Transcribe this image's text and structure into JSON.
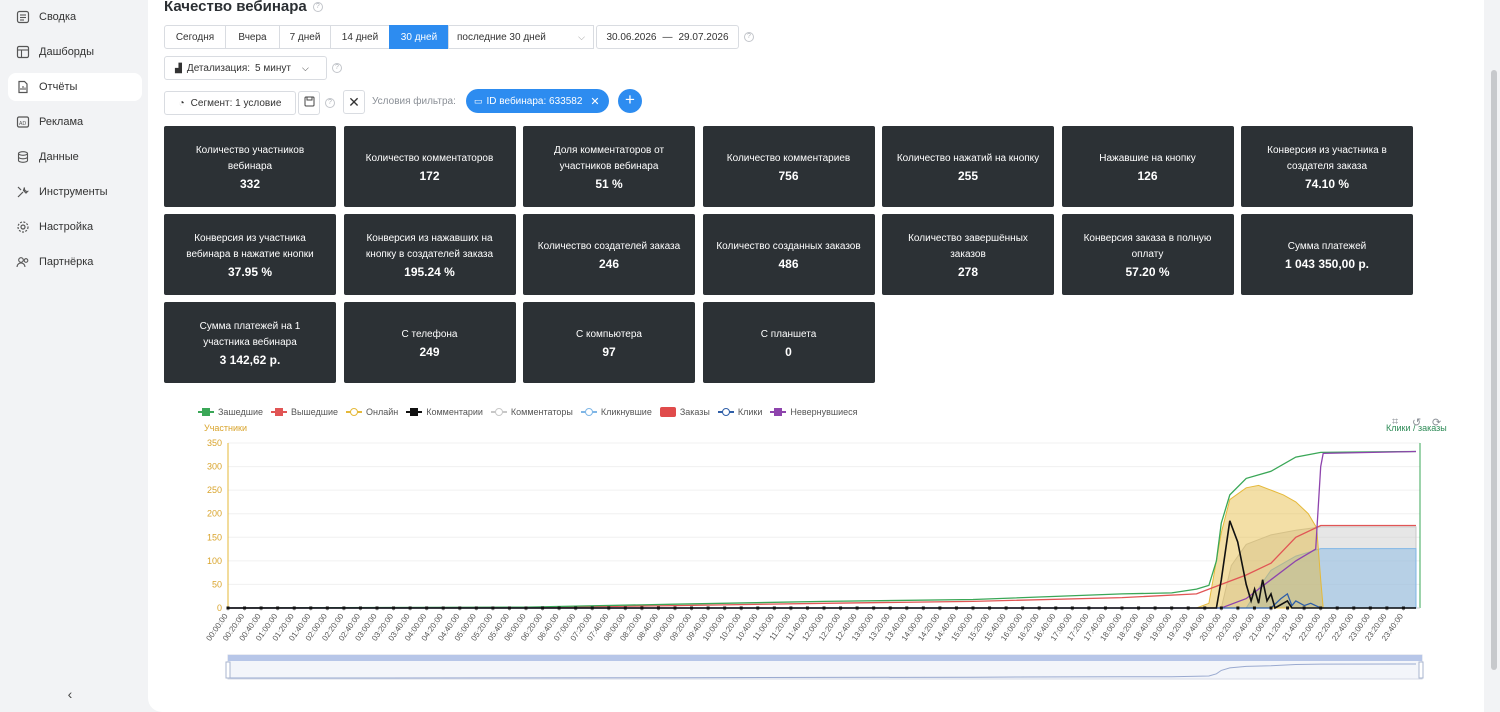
{
  "sidebar": {
    "items": [
      {
        "label": "Сводка",
        "icon": "summary-icon"
      },
      {
        "label": "Дашборды",
        "icon": "dashboard-icon"
      },
      {
        "label": "Отчёты",
        "icon": "reports-icon"
      },
      {
        "label": "Реклама",
        "icon": "ads-icon"
      },
      {
        "label": "Данные",
        "icon": "database-icon"
      },
      {
        "label": "Инструменты",
        "icon": "tools-icon"
      },
      {
        "label": "Настройка",
        "icon": "settings-icon"
      },
      {
        "label": "Партнёрка",
        "icon": "partners-icon"
      }
    ],
    "active_index": 2,
    "collapse_label": "‹"
  },
  "page": {
    "title": "Качество вебинара"
  },
  "date_buttons": [
    "Сегодня",
    "Вчера",
    "7 дней",
    "14 дней",
    "30 дней"
  ],
  "date_active": "30 дней",
  "period_select": "последние 30 дней",
  "date_range": {
    "from": "30.06.2026",
    "sep": "—",
    "to": "29.07.2026"
  },
  "detail": {
    "label": "Детализация:",
    "value": "5 минут"
  },
  "segment": {
    "label": "Сегмент: 1 условие"
  },
  "filter": {
    "label": "Условия фильтра:",
    "chip": "ID вебинара: 633582"
  },
  "cards": [
    {
      "label": "Количество участников вебинара",
      "value": "332"
    },
    {
      "label": "Количество комментаторов",
      "value": "172"
    },
    {
      "label": "Доля комментаторов от участников вебинара",
      "value": "51 %"
    },
    {
      "label": "Количество комментариев",
      "value": "756"
    },
    {
      "label": "Количество нажатий на кнопку",
      "value": "255"
    },
    {
      "label": "Нажавшие на кнопку",
      "value": "126"
    },
    {
      "label": "Конверсия из участника в создателя заказа",
      "value": "74.10 %"
    },
    {
      "label": "Конверсия из участника вебинара в нажатие кнопки",
      "value": "37.95 %"
    },
    {
      "label": "Конверсия из нажавших на кнопку в создателей заказа",
      "value": "195.24 %"
    },
    {
      "label": "Количество создателей заказа",
      "value": "246"
    },
    {
      "label": "Количество созданных заказов",
      "value": "486"
    },
    {
      "label": "Количество завершённых заказов",
      "value": "278"
    },
    {
      "label": "Конверсия заказа в полную оплату",
      "value": "57.20 %"
    },
    {
      "label": "Сумма платежей",
      "value": "1 043 350,00 р."
    },
    {
      "label": "Сумма платежей на 1 участника вебинара",
      "value": "3 142,62 р."
    },
    {
      "label": "С телефона",
      "value": "249"
    },
    {
      "label": "С компьютера",
      "value": "97"
    },
    {
      "label": "С планшета",
      "value": "0"
    }
  ],
  "chart": {
    "legend": [
      {
        "name": "Зашедшие",
        "color": "#3aa757",
        "marker": "square"
      },
      {
        "name": "Вышедшие",
        "color": "#e15555",
        "marker": "square"
      },
      {
        "name": "Онлайн",
        "color": "#e5b93a",
        "marker": "circle"
      },
      {
        "name": "Комментарии",
        "color": "#111111",
        "marker": "square"
      },
      {
        "name": "Комментаторы",
        "color": "#c8c8c8",
        "marker": "circle"
      },
      {
        "name": "Кликнувшие",
        "color": "#7fb6e6",
        "marker": "circle"
      },
      {
        "name": "Заказы",
        "color": "#e04b4b",
        "marker": "box"
      },
      {
        "name": "Клики",
        "color": "#2f5fa8",
        "marker": "circle"
      },
      {
        "name": "Невернувшиеся",
        "color": "#8e44ad",
        "marker": "square"
      }
    ],
    "y_title": "Участники",
    "y2_title": "Клики / заказы"
  },
  "chart_data": {
    "type": "area",
    "ylabel": "Участники",
    "y2label": "Клики / заказы",
    "ylim": [
      0,
      350
    ],
    "yticks": [
      0,
      50,
      100,
      150,
      200,
      250,
      300,
      350
    ],
    "x_ticks": [
      "00:00:00",
      "00:20:00",
      "00:40:00",
      "01:00:00",
      "01:20:00",
      "01:40:00",
      "02:00:00",
      "02:20:00",
      "02:40:00",
      "03:00:00",
      "03:20:00",
      "03:40:00",
      "04:00:00",
      "04:20:00",
      "04:40:00",
      "05:00:00",
      "05:20:00",
      "05:40:00",
      "06:00:00",
      "06:20:00",
      "06:40:00",
      "07:00:00",
      "07:20:00",
      "07:40:00",
      "08:00:00",
      "08:20:00",
      "08:40:00",
      "09:00:00",
      "09:20:00",
      "09:40:00",
      "10:00:00",
      "10:20:00",
      "10:40:00",
      "11:00:00",
      "11:20:00",
      "11:40:00",
      "12:00:00",
      "12:20:00",
      "12:40:00",
      "13:00:00",
      "13:20:00",
      "13:40:00",
      "14:00:00",
      "14:20:00",
      "14:40:00",
      "15:00:00",
      "15:20:00",
      "15:40:00",
      "16:00:00",
      "16:20:00",
      "16:40:00",
      "17:00:00",
      "17:20:00",
      "17:40:00",
      "18:00:00",
      "18:20:00",
      "18:40:00",
      "19:00:00",
      "19:20:00",
      "19:40:00",
      "20:00:00",
      "20:20:00",
      "20:40:00",
      "21:00:00",
      "21:20:00",
      "21:40:00",
      "22:00:00",
      "22:20:00",
      "22:40:00",
      "23:00:00",
      "23:20:00",
      "23:40:00"
    ],
    "x_hours": [
      0,
      24
    ],
    "series": [
      {
        "name": "Зашедшие",
        "color": "#3aa757",
        "kind": "line",
        "points": [
          [
            0,
            0
          ],
          [
            6,
            2
          ],
          [
            9,
            8
          ],
          [
            12,
            14
          ],
          [
            15,
            18
          ],
          [
            18,
            30
          ],
          [
            19,
            32
          ],
          [
            19.5,
            40
          ],
          [
            19.75,
            48
          ],
          [
            19.9,
            100
          ],
          [
            20,
            180
          ],
          [
            20.17,
            240
          ],
          [
            20.5,
            275
          ],
          [
            21,
            290
          ],
          [
            21.5,
            320
          ],
          [
            22,
            330
          ],
          [
            23.92,
            332
          ]
        ]
      },
      {
        "name": "Вышедшие",
        "color": "#e15555",
        "kind": "line",
        "points": [
          [
            0,
            0
          ],
          [
            6,
            1
          ],
          [
            9,
            5
          ],
          [
            12,
            10
          ],
          [
            15,
            14
          ],
          [
            18,
            22
          ],
          [
            19.5,
            30
          ],
          [
            20,
            50
          ],
          [
            20.5,
            70
          ],
          [
            21,
            95
          ],
          [
            21.5,
            150
          ],
          [
            22,
            175
          ],
          [
            23.92,
            175
          ]
        ]
      },
      {
        "name": "Онлайн",
        "color": "#e5b93a",
        "kind": "area",
        "points": [
          [
            19.5,
            0
          ],
          [
            19.75,
            10
          ],
          [
            20,
            160
          ],
          [
            20.17,
            230
          ],
          [
            20.5,
            255
          ],
          [
            20.75,
            260
          ],
          [
            21,
            250
          ],
          [
            21.25,
            240
          ],
          [
            21.5,
            225
          ],
          [
            21.75,
            200
          ],
          [
            21.92,
            170
          ],
          [
            22,
            60
          ],
          [
            22.05,
            0
          ]
        ]
      },
      {
        "name": "Комментаторы",
        "color": "#c8c8c8",
        "kind": "area",
        "points": [
          [
            20,
            0
          ],
          [
            20.2,
            90
          ],
          [
            20.5,
            135
          ],
          [
            21,
            155
          ],
          [
            21.5,
            165
          ],
          [
            22,
            172
          ],
          [
            23.92,
            172
          ]
        ]
      },
      {
        "name": "Кликнувшие",
        "color": "#7fb6e6",
        "kind": "area",
        "points": [
          [
            20.5,
            0
          ],
          [
            20.8,
            50
          ],
          [
            21,
            80
          ],
          [
            21.5,
            110
          ],
          [
            22,
            126
          ],
          [
            23.92,
            126
          ]
        ]
      },
      {
        "name": "Невернувшиеся",
        "color": "#8e44ad",
        "kind": "line",
        "points": [
          [
            0,
            0
          ],
          [
            20,
            0
          ],
          [
            20.5,
            20
          ],
          [
            21,
            60
          ],
          [
            21.5,
            100
          ],
          [
            21.9,
            125
          ],
          [
            22,
            300
          ],
          [
            22.05,
            328
          ],
          [
            23.92,
            332
          ]
        ]
      },
      {
        "name": "Комментарии",
        "color": "#111111",
        "kind": "line",
        "points": [
          [
            0,
            0
          ],
          [
            19.9,
            0
          ],
          [
            20,
            60
          ],
          [
            20.17,
            185
          ],
          [
            20.33,
            140
          ],
          [
            20.5,
            50
          ],
          [
            20.6,
            15
          ],
          [
            20.67,
            40
          ],
          [
            20.75,
            10
          ],
          [
            20.83,
            60
          ],
          [
            20.92,
            15
          ],
          [
            21,
            30
          ],
          [
            21.08,
            0
          ],
          [
            21.33,
            15
          ],
          [
            21.42,
            0
          ],
          [
            23.92,
            0
          ]
        ]
      },
      {
        "name": "Клики",
        "color": "#2f5fa8",
        "kind": "line",
        "points": [
          [
            0,
            0
          ],
          [
            21,
            0
          ],
          [
            21.2,
            20
          ],
          [
            21.33,
            30
          ],
          [
            21.42,
            5
          ],
          [
            21.5,
            15
          ],
          [
            21.67,
            5
          ],
          [
            21.8,
            10
          ],
          [
            22,
            0
          ],
          [
            23.92,
            0
          ]
        ]
      }
    ]
  }
}
